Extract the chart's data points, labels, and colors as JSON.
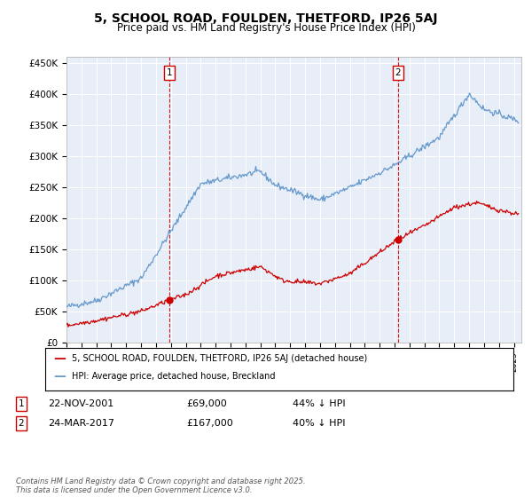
{
  "title": "5, SCHOOL ROAD, FOULDEN, THETFORD, IP26 5AJ",
  "subtitle": "Price paid vs. HM Land Registry's House Price Index (HPI)",
  "ylabel_ticks": [
    "£0",
    "£50K",
    "£100K",
    "£150K",
    "£200K",
    "£250K",
    "£300K",
    "£350K",
    "£400K",
    "£450K"
  ],
  "ytick_values": [
    0,
    50000,
    100000,
    150000,
    200000,
    250000,
    300000,
    350000,
    400000,
    450000
  ],
  "ylim": [
    0,
    460000
  ],
  "xlim_start": 1995.0,
  "xlim_end": 2025.5,
  "sale1": {
    "date": 2001.9,
    "price": 69000,
    "label": "1"
  },
  "sale2": {
    "date": 2017.23,
    "price": 167000,
    "label": "2"
  },
  "legend_house": "5, SCHOOL ROAD, FOULDEN, THETFORD, IP26 5AJ (detached house)",
  "legend_hpi": "HPI: Average price, detached house, Breckland",
  "footnote": "Contains HM Land Registry data © Crown copyright and database right 2025.\nThis data is licensed under the Open Government Licence v3.0.",
  "house_color": "#cc0000",
  "hpi_color": "#6699cc",
  "vline_color": "#cc0000",
  "background_color": "#e8eef8",
  "title_fontsize": 10,
  "subtitle_fontsize": 8.5
}
